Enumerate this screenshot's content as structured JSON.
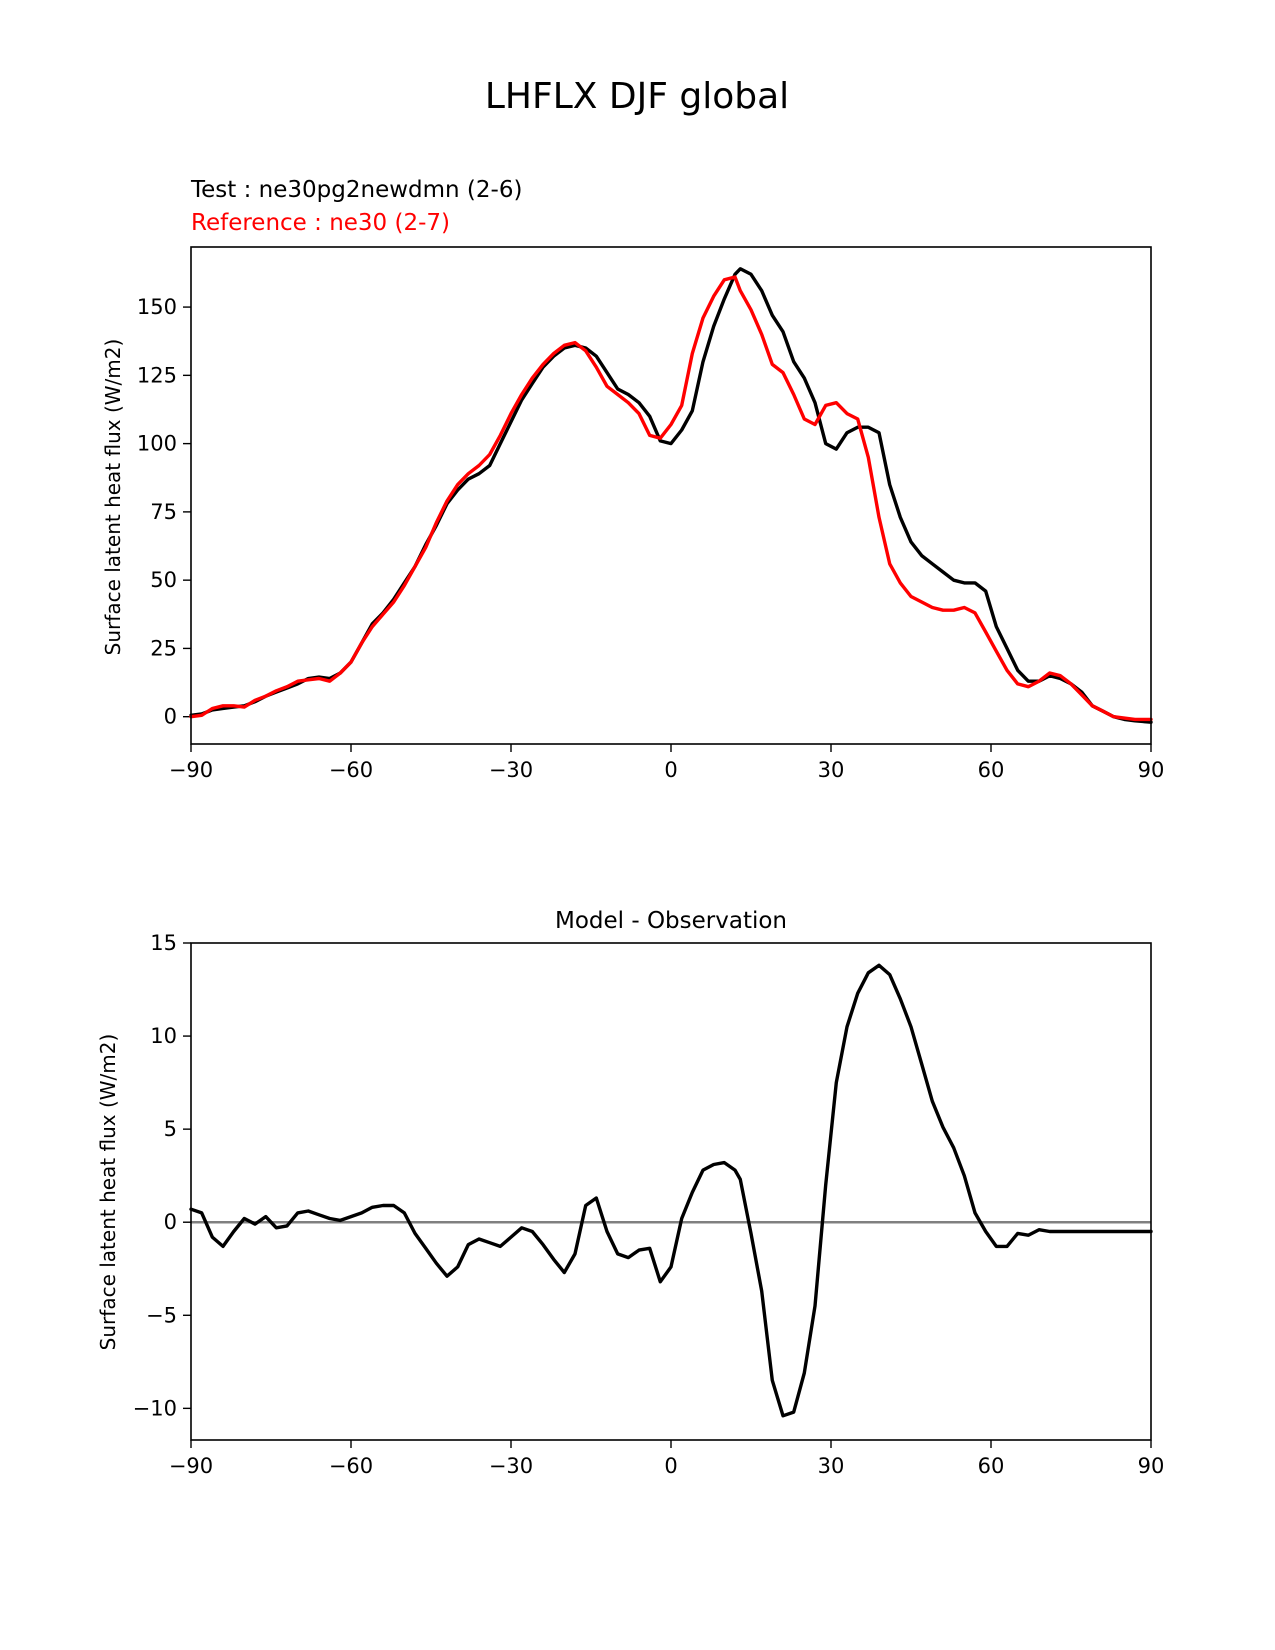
{
  "figure": {
    "title": "LHFLX DJF global"
  },
  "chart_data": [
    {
      "type": "line",
      "test_label": "Test : ne30pg2newdmn (2-6)",
      "reference_label": "Reference : ne30 (2-7)",
      "xlabel": "",
      "ylabel": "Surface latent heat flux (W/m2)",
      "xlim": [
        -90,
        90
      ],
      "ylim": [
        -10,
        172
      ],
      "xticks": [
        -90,
        -60,
        -30,
        0,
        30,
        60,
        90
      ],
      "xtick_labels": [
        "−90",
        "−60",
        "−30",
        "0",
        "30",
        "60",
        "90"
      ],
      "yticks": [
        0,
        25,
        50,
        75,
        100,
        125,
        150
      ],
      "ytick_labels": [
        "0",
        "25",
        "50",
        "75",
        "100",
        "125",
        "150"
      ],
      "series": [
        {
          "name": "Test",
          "color": "#000000",
          "x": [
            -90,
            -88,
            -86,
            -84,
            -82,
            -80,
            -78,
            -76,
            -74,
            -72,
            -70,
            -68,
            -66,
            -64,
            -62,
            -60,
            -58,
            -56,
            -54,
            -52,
            -50,
            -48,
            -46,
            -44,
            -42,
            -40,
            -38,
            -36,
            -34,
            -32,
            -30,
            -28,
            -26,
            -24,
            -22,
            -20,
            -18,
            -16,
            -14,
            -12,
            -10,
            -8,
            -6,
            -4,
            -2,
            0,
            2,
            4,
            6,
            8,
            10,
            12,
            13,
            15,
            17,
            19,
            21,
            23,
            25,
            27,
            29,
            31,
            33,
            35,
            37,
            39,
            41,
            43,
            45,
            47,
            49,
            51,
            53,
            55,
            57,
            59,
            61,
            63,
            65,
            67,
            69,
            71,
            73,
            75,
            77,
            79,
            81,
            83,
            85,
            87,
            90
          ],
          "y": [
            0.5,
            1,
            2.5,
            3,
            3.5,
            4,
            5.5,
            7.5,
            9,
            10.5,
            12,
            14,
            14.5,
            14,
            16,
            20,
            27,
            34,
            38,
            43,
            49,
            55,
            63,
            70,
            78,
            83,
            87,
            89,
            92,
            100,
            108,
            116,
            122,
            128,
            132,
            135,
            136,
            135,
            132,
            126,
            120,
            118,
            115,
            110,
            101,
            100,
            105,
            112,
            130,
            143,
            153,
            162,
            164,
            162,
            156,
            147,
            141,
            130,
            124,
            115,
            100,
            98,
            104,
            106,
            106,
            104,
            85,
            73,
            64,
            59,
            56,
            53,
            50,
            49,
            49,
            46,
            33,
            25,
            17,
            13,
            13,
            15,
            14,
            12,
            9,
            4,
            2,
            0,
            -1,
            -1.5,
            -2
          ]
        },
        {
          "name": "Reference",
          "color": "#ff0000",
          "x": [
            -90,
            -88,
            -86,
            -84,
            -82,
            -80,
            -78,
            -76,
            -74,
            -72,
            -70,
            -68,
            -66,
            -64,
            -62,
            -60,
            -58,
            -56,
            -54,
            -52,
            -50,
            -48,
            -46,
            -44,
            -42,
            -40,
            -38,
            -36,
            -34,
            -32,
            -30,
            -28,
            -26,
            -24,
            -22,
            -20,
            -18,
            -16,
            -14,
            -12,
            -10,
            -8,
            -6,
            -4,
            -2,
            0,
            2,
            4,
            6,
            8,
            10,
            12,
            13,
            15,
            17,
            19,
            21,
            23,
            25,
            27,
            29,
            31,
            33,
            35,
            37,
            39,
            41,
            43,
            45,
            47,
            49,
            51,
            53,
            55,
            57,
            59,
            61,
            63,
            65,
            67,
            69,
            71,
            73,
            75,
            77,
            79,
            81,
            83,
            85,
            87,
            90
          ],
          "y": [
            0,
            0.5,
            3,
            4,
            4,
            3.5,
            6,
            7.5,
            9.5,
            11,
            13,
            13.5,
            14,
            13,
            16,
            20,
            27,
            33,
            37.5,
            42,
            48,
            55,
            62,
            71,
            79,
            85,
            89,
            92,
            96,
            103,
            111,
            118,
            124,
            129,
            133,
            136,
            137,
            134,
            128,
            121,
            118,
            115,
            111,
            103,
            102,
            107,
            114,
            133,
            146,
            154,
            160,
            161,
            156,
            149,
            140,
            129,
            126,
            118,
            109,
            107,
            114,
            115,
            111,
            109,
            95,
            73,
            56,
            49,
            44,
            42,
            40,
            39,
            39,
            40,
            38,
            31,
            24,
            17,
            12,
            11,
            13,
            16,
            15,
            12,
            8,
            4,
            2,
            0,
            -0.5,
            -1,
            -1
          ]
        }
      ],
      "legend": "above-left"
    },
    {
      "type": "line",
      "title": "Model - Observation",
      "xlabel": "",
      "ylabel": "Surface latent heat flux (W/m2)",
      "xlim": [
        -90,
        90
      ],
      "ylim": [
        -11.7,
        15
      ],
      "xticks": [
        -90,
        -60,
        -30,
        0,
        30,
        60,
        90
      ],
      "xtick_labels": [
        "−90",
        "−60",
        "−30",
        "0",
        "30",
        "60",
        "90"
      ],
      "yticks": [
        -10,
        -5,
        0,
        5,
        10,
        15
      ],
      "ytick_labels": [
        "−10",
        "−5",
        "0",
        "5",
        "10",
        "15"
      ],
      "zero_line": {
        "y": 0,
        "color": "#808080"
      },
      "series": [
        {
          "name": "Model - Observation",
          "color": "#000000",
          "x": [
            -90,
            -88,
            -86,
            -84,
            -82,
            -80,
            -78,
            -76,
            -74,
            -72,
            -70,
            -68,
            -66,
            -64,
            -62,
            -60,
            -58,
            -56,
            -54,
            -52,
            -50,
            -48,
            -46,
            -44,
            -42,
            -40,
            -38,
            -36,
            -34,
            -32,
            -30,
            -28,
            -26,
            -24,
            -22,
            -20,
            -18,
            -16,
            -14,
            -12,
            -10,
            -8,
            -6,
            -4,
            -2,
            0,
            2,
            4,
            6,
            8,
            10,
            12,
            13,
            15,
            17,
            19,
            21,
            23,
            25,
            27,
            29,
            31,
            33,
            35,
            37,
            39,
            41,
            43,
            45,
            47,
            49,
            51,
            53,
            55,
            57,
            59,
            61,
            63,
            65,
            67,
            69,
            71,
            73,
            75,
            77,
            79,
            81,
            83,
            85,
            87,
            90
          ],
          "y": [
            0.7,
            0.5,
            -0.8,
            -1.3,
            -0.5,
            0.2,
            -0.1,
            0.3,
            -0.3,
            -0.2,
            0.5,
            0.6,
            0.4,
            0.2,
            0.1,
            0.3,
            0.5,
            0.8,
            0.9,
            0.9,
            0.5,
            -0.6,
            -1.4,
            -2.2,
            -2.9,
            -2.4,
            -1.2,
            -0.9,
            -1.1,
            -1.3,
            -0.8,
            -0.3,
            -0.5,
            -1.2,
            -2.0,
            -2.7,
            -1.7,
            0.9,
            1.3,
            -0.5,
            -1.7,
            -1.9,
            -1.5,
            -1.4,
            -3.2,
            -2.4,
            0.2,
            1.6,
            2.8,
            3.1,
            3.2,
            2.8,
            2.3,
            -0.6,
            -3.7,
            -8.5,
            -10.4,
            -10.2,
            -8.1,
            -4.5,
            2.0,
            7.5,
            10.5,
            12.3,
            13.4,
            13.8,
            13.3,
            12.0,
            10.5,
            8.5,
            6.5,
            5.1,
            4.0,
            2.5,
            0.5,
            -0.5,
            -1.3,
            -1.3,
            -0.6,
            -0.7,
            -0.4,
            -0.5,
            -0.5,
            -0.5,
            -0.5,
            -0.5,
            -0.5,
            -0.5,
            -0.5,
            -0.5,
            -0.5
          ]
        }
      ]
    }
  ]
}
